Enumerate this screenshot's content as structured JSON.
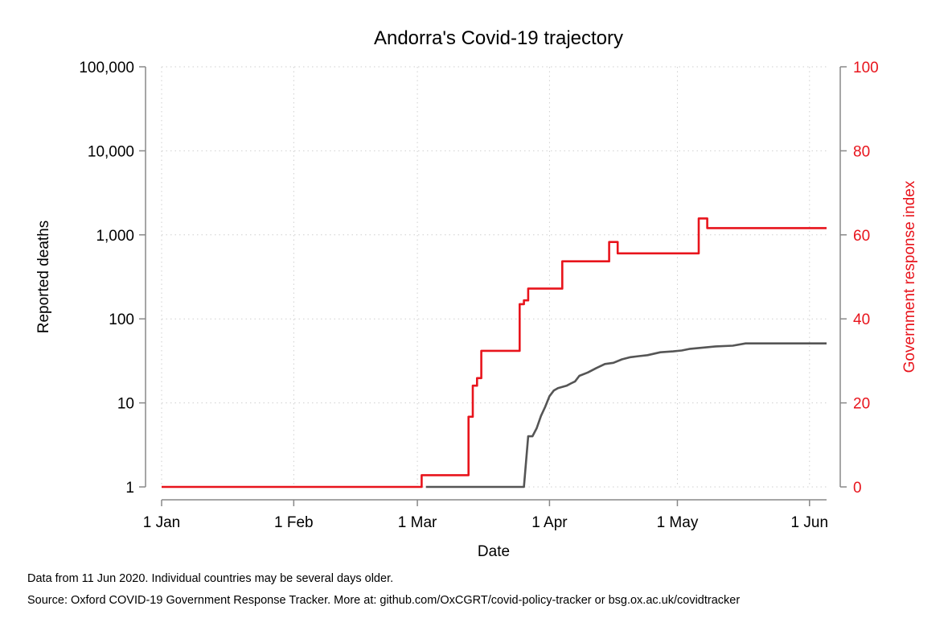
{
  "chart_data": {
    "type": "line",
    "title": "Andorra's Covid-19 trajectory",
    "xlabel": "Date",
    "ylabel_left": "Reported deaths",
    "ylabel_right": "Government response index",
    "x_axis": {
      "range": [
        "2020-01-01",
        "2020-06-05"
      ],
      "ticks": [
        {
          "date": "2020-01-01",
          "label": "1 Jan"
        },
        {
          "date": "2020-02-01",
          "label": "1 Feb"
        },
        {
          "date": "2020-03-01",
          "label": "1 Mar"
        },
        {
          "date": "2020-04-01",
          "label": "1 Apr"
        },
        {
          "date": "2020-05-01",
          "label": "1 May"
        },
        {
          "date": "2020-06-01",
          "label": "1 Jun"
        }
      ]
    },
    "y_left": {
      "scale": "log",
      "range": [
        1,
        100000
      ],
      "ticks": [
        {
          "value": 1,
          "label": "1"
        },
        {
          "value": 10,
          "label": "10"
        },
        {
          "value": 100,
          "label": "100"
        },
        {
          "value": 1000,
          "label": "1,000"
        },
        {
          "value": 10000,
          "label": "10,000"
        },
        {
          "value": 100000,
          "label": "100,000"
        }
      ]
    },
    "y_right": {
      "scale": "linear",
      "range": [
        0,
        100
      ],
      "ticks": [
        {
          "value": 0,
          "label": "0"
        },
        {
          "value": 20,
          "label": "20"
        },
        {
          "value": 40,
          "label": "40"
        },
        {
          "value": 60,
          "label": "60"
        },
        {
          "value": 80,
          "label": "80"
        },
        {
          "value": 100,
          "label": "100"
        }
      ]
    },
    "grid": true,
    "legend": "none",
    "series": [
      {
        "axis": "left",
        "color": "#555555",
        "step": false,
        "points": [
          [
            "2020-03-03",
            1
          ],
          [
            "2020-03-26",
            1
          ],
          [
            "2020-03-27",
            4
          ],
          [
            "2020-03-28",
            4
          ],
          [
            "2020-03-29",
            5
          ],
          [
            "2020-03-30",
            7
          ],
          [
            "2020-03-31",
            9
          ],
          [
            "2020-04-01",
            12
          ],
          [
            "2020-04-02",
            14
          ],
          [
            "2020-04-03",
            15
          ],
          [
            "2020-04-05",
            16
          ],
          [
            "2020-04-06",
            17
          ],
          [
            "2020-04-07",
            18
          ],
          [
            "2020-04-08",
            21
          ],
          [
            "2020-04-10",
            23
          ],
          [
            "2020-04-12",
            26
          ],
          [
            "2020-04-14",
            29
          ],
          [
            "2020-04-16",
            30
          ],
          [
            "2020-04-18",
            33
          ],
          [
            "2020-04-20",
            35
          ],
          [
            "2020-04-22",
            36
          ],
          [
            "2020-04-24",
            37
          ],
          [
            "2020-04-27",
            40
          ],
          [
            "2020-04-30",
            41
          ],
          [
            "2020-05-02",
            42
          ],
          [
            "2020-05-04",
            44
          ],
          [
            "2020-05-06",
            45
          ],
          [
            "2020-05-08",
            46
          ],
          [
            "2020-05-10",
            47
          ],
          [
            "2020-05-14",
            48
          ],
          [
            "2020-05-17",
            51
          ],
          [
            "2020-06-05",
            51
          ]
        ]
      },
      {
        "axis": "right",
        "color": "#e8141c",
        "step": true,
        "points": [
          [
            "2020-01-01",
            0
          ],
          [
            "2020-03-02",
            2.8
          ],
          [
            "2020-03-13",
            16.7
          ],
          [
            "2020-03-14",
            24.1
          ],
          [
            "2020-03-15",
            25.9
          ],
          [
            "2020-03-16",
            32.4
          ],
          [
            "2020-03-25",
            43.5
          ],
          [
            "2020-03-26",
            44.4
          ],
          [
            "2020-03-27",
            47.2
          ],
          [
            "2020-04-04",
            53.7
          ],
          [
            "2020-04-15",
            58.3
          ],
          [
            "2020-04-16",
            58.3
          ],
          [
            "2020-04-17",
            55.6
          ],
          [
            "2020-05-06",
            63.9
          ],
          [
            "2020-05-08",
            61.6
          ],
          [
            "2020-06-05",
            61.6
          ]
        ]
      }
    ]
  },
  "notes": {
    "line1": "Data from 11 Jun 2020. Individual countries may be several days older.",
    "line2": "Source: Oxford COVID-19 Government Response Tracker. More at: github.com/OxCGRT/covid-policy-tracker or bsg.ox.ac.uk/covidtracker"
  }
}
